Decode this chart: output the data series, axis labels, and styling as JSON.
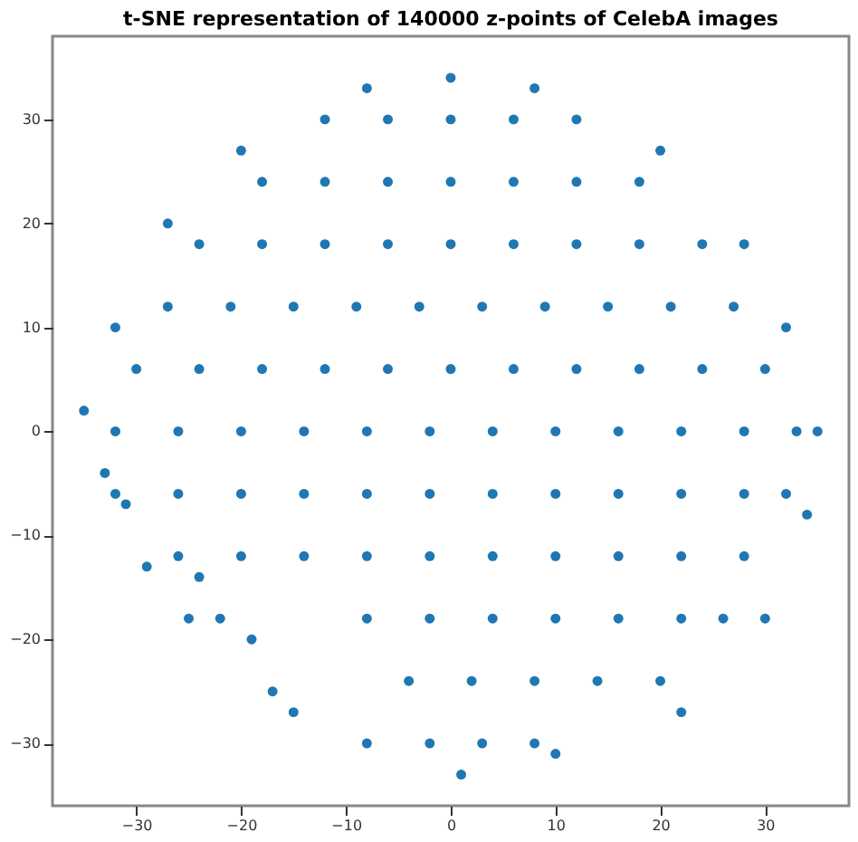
{
  "chart_data": {
    "type": "scatter",
    "title": "t-SNE representation of 140000 z-points of CelebA images",
    "xlim": [
      -38,
      38
    ],
    "ylim": [
      -36,
      38
    ],
    "xticks": [
      -30,
      -20,
      -10,
      0,
      10,
      20,
      30
    ],
    "yticks": [
      -30,
      -20,
      -10,
      0,
      10,
      20,
      30
    ],
    "grid": false,
    "marker": "circle",
    "series": [
      {
        "color": "#1f77b4",
        "x": [
          -12,
          -6,
          0,
          6,
          12,
          -18,
          -12,
          -6,
          0,
          6,
          12,
          18,
          -24,
          -18,
          -12,
          -6,
          0,
          6,
          12,
          18,
          24,
          -27,
          -21,
          -15,
          -9,
          -3,
          3,
          9,
          15,
          21,
          27,
          -30,
          -24,
          -18,
          -12,
          -6,
          0,
          6,
          12,
          18,
          24,
          30,
          -32,
          -26,
          -20,
          -14,
          -8,
          -2,
          4,
          10,
          16,
          22,
          28,
          33,
          -32,
          -26,
          -20,
          -14,
          -8,
          -2,
          4,
          10,
          16,
          22,
          28,
          32,
          -26,
          -20,
          -14,
          -8,
          -2,
          4,
          10,
          16,
          22,
          28,
          -22,
          -8,
          -2,
          4,
          10,
          16,
          22,
          26,
          -4,
          2,
          8,
          14,
          20,
          -2,
          3,
          8,
          -19,
          -17,
          -15,
          -25,
          -33,
          -31,
          0,
          -8,
          8,
          -20,
          20,
          -27,
          28,
          -32,
          32,
          -35,
          35,
          34,
          30,
          22,
          10,
          1,
          -8,
          -24,
          -29
        ],
        "values": [
          30,
          30,
          30,
          30,
          30,
          24,
          24,
          24,
          24,
          24,
          24,
          24,
          18,
          18,
          18,
          18,
          18,
          18,
          18,
          18,
          18,
          12,
          12,
          12,
          12,
          12,
          12,
          12,
          12,
          12,
          12,
          6,
          6,
          6,
          6,
          6,
          6,
          6,
          6,
          6,
          6,
          6,
          0,
          0,
          0,
          0,
          0,
          0,
          0,
          0,
          0,
          0,
          0,
          0,
          -6,
          -6,
          -6,
          -6,
          -6,
          -6,
          -6,
          -6,
          -6,
          -6,
          -6,
          -6,
          -12,
          -12,
          -12,
          -12,
          -12,
          -12,
          -12,
          -12,
          -12,
          -12,
          -18,
          -18,
          -18,
          -18,
          -18,
          -18,
          -18,
          -18,
          -24,
          -24,
          -24,
          -24,
          -24,
          -30,
          -30,
          -30,
          -20,
          -25,
          -27,
          -18,
          -4,
          -7,
          34,
          33,
          33,
          27,
          27,
          20,
          18,
          10,
          10,
          2,
          0,
          -8,
          -18,
          -27,
          -31,
          -33,
          -30,
          -14,
          -13
        ]
      }
    ]
  }
}
